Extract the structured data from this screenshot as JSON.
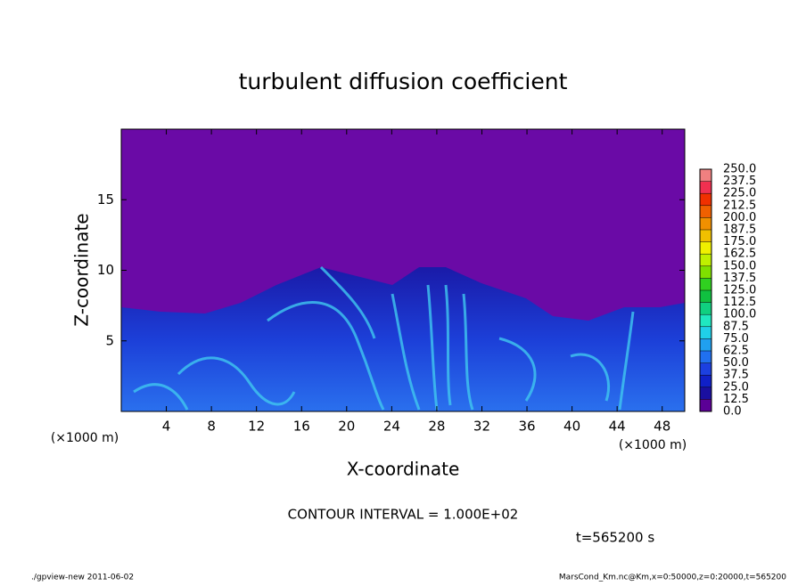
{
  "chart_data": {
    "type": "contour",
    "title": "turbulent diffusion coefficient",
    "xlabel": "X-coordinate",
    "ylabel": "Z-coordinate",
    "x_unit_left": "(×1000 m)",
    "x_unit_right": "(×1000 m)",
    "xlim": [
      0,
      50
    ],
    "xticks": [
      4,
      8,
      12,
      16,
      20,
      24,
      28,
      32,
      36,
      40,
      44,
      48
    ],
    "ylim": [
      0,
      20
    ],
    "yticks": [
      5,
      10,
      15
    ],
    "background_color": "#6a0aa6",
    "colorbar": {
      "lim": [
        0,
        250
      ],
      "levels": [
        {
          "value": 0,
          "label": "0.0"
        },
        {
          "value": 12.5,
          "label": "12.5"
        },
        {
          "value": 25,
          "label": "25.0"
        },
        {
          "value": 37.5,
          "label": "37.5"
        },
        {
          "value": 50,
          "label": "50.0"
        },
        {
          "value": 62.5,
          "label": "62.5"
        },
        {
          "value": 75,
          "label": "75.0"
        },
        {
          "value": 87.5,
          "label": "87.5"
        },
        {
          "value": 100,
          "label": "100.0"
        },
        {
          "value": 112.5,
          "label": "112.5"
        },
        {
          "value": 125,
          "label": "125.0"
        },
        {
          "value": 137.5,
          "label": "137.5"
        },
        {
          "value": 150,
          "label": "150.0"
        },
        {
          "value": 162.5,
          "label": "162.5"
        },
        {
          "value": 175,
          "label": "175.0"
        },
        {
          "value": 187.5,
          "label": "187.5"
        },
        {
          "value": 200,
          "label": "200.0"
        },
        {
          "value": 212.5,
          "label": "212.5"
        },
        {
          "value": 225,
          "label": "225.0"
        },
        {
          "value": 237.5,
          "label": "237.5"
        },
        {
          "value": 250,
          "label": "250.0"
        }
      ],
      "colors": [
        "#5b0096",
        "#1a0fa0",
        "#1020c8",
        "#1c40e0",
        "#2070f0",
        "#20a0f0",
        "#20d0e8",
        "#20e8c0",
        "#10d080",
        "#10c040",
        "#30d020",
        "#80e000",
        "#c0f000",
        "#f0f000",
        "#f0c000",
        "#f09000",
        "#f06000",
        "#f03000",
        "#f03050",
        "#f08080"
      ]
    },
    "contour_interval": "CONTOUR INTERVAL = 1.000E+02",
    "time": "t=565200 s",
    "footer_left": "./gpview-new   2011-06-02",
    "footer_right": "MarsCond_Km.nc@Km,x=0:50000,z=0:20000,t=565200"
  }
}
